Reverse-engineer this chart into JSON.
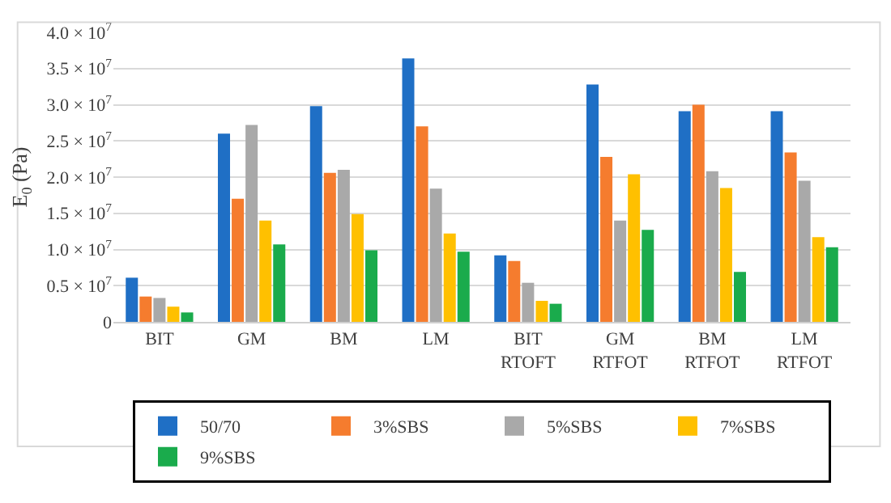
{
  "chart_data": {
    "type": "bar",
    "ylabel": "E$_{0}$ (Pa)",
    "categories": [
      "BIT",
      "GM",
      "BM",
      "LM",
      "BIT RTOFT",
      "GM RTFOT",
      "BM RTFOT",
      "LM RTFOT"
    ],
    "series": [
      {
        "name": "50/70",
        "color": "#1f6fc5",
        "values": [
          6100000,
          26000000,
          29800000,
          36400000,
          9200000,
          32800000,
          29100000,
          29100000
        ]
      },
      {
        "name": "3%SBS",
        "color": "#f57c2e",
        "values": [
          3500000,
          17000000,
          20600000,
          27000000,
          8400000,
          22800000,
          30000000,
          23400000
        ]
      },
      {
        "name": "5%SBS",
        "color": "#a9a9a9",
        "values": [
          3300000,
          27200000,
          21000000,
          18400000,
          5400000,
          14000000,
          20800000,
          19500000
        ]
      },
      {
        "name": "7%SBS",
        "color": "#ffc000",
        "values": [
          2100000,
          14000000,
          14900000,
          12200000,
          2900000,
          20400000,
          18500000,
          11700000
        ]
      },
      {
        "name": "9%SBS",
        "color": "#1aab4c",
        "values": [
          1300000,
          10700000,
          9900000,
          9700000,
          2500000,
          12700000,
          6900000,
          10300000
        ]
      }
    ],
    "ylim": [
      0,
      40000000
    ],
    "yticks": [
      {
        "value": 0,
        "label": "0"
      },
      {
        "value": 5000000,
        "label": "0.5 × 10$^{7}$"
      },
      {
        "value": 10000000,
        "label": "1.0 × 10$^{7}$"
      },
      {
        "value": 15000000,
        "label": "1.5 × 10$^{7}$"
      },
      {
        "value": 20000000,
        "label": "2.0 × 10$^{7}$"
      },
      {
        "value": 25000000,
        "label": "2.5 × 10$^{7}$"
      },
      {
        "value": 30000000,
        "label": "3.0 × 10$^{7}$"
      },
      {
        "value": 35000000,
        "label": "3.5 × 10$^{7}$"
      },
      {
        "value": 40000000,
        "label": "4.0 × 10$^{7}$"
      }
    ],
    "grid": "y",
    "legend": "bottom"
  }
}
